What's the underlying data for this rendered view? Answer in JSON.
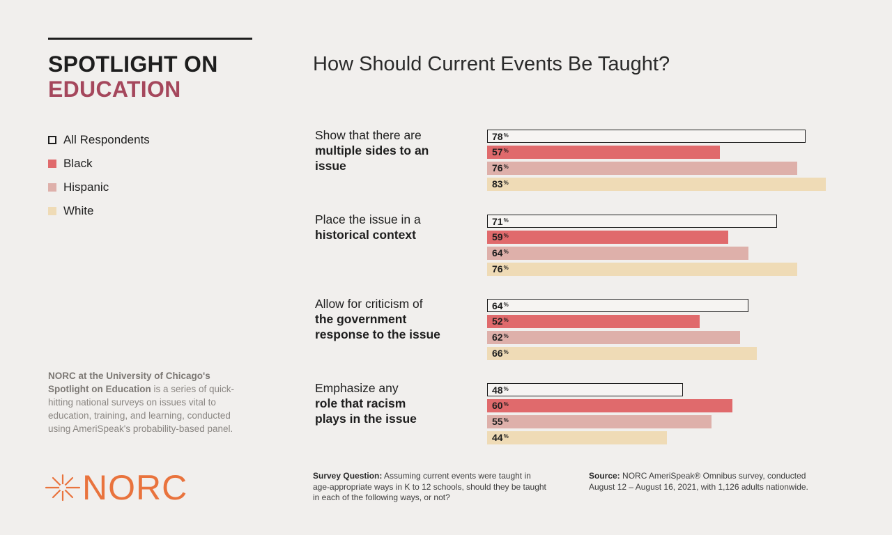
{
  "brand": {
    "line1": "SPOTLIGHT ON",
    "line2": "EDUCATION"
  },
  "legend": [
    {
      "label": "All Respondents",
      "color": "#f6f4f2",
      "outlined": true
    },
    {
      "label": "Black",
      "color": "#e06a6c",
      "outlined": false
    },
    {
      "label": "Hispanic",
      "color": "#deb0aa",
      "outlined": false
    },
    {
      "label": "White",
      "color": "#efdbb6",
      "outlined": false
    }
  ],
  "about": {
    "bold": "NORC at the University of Chicago's Spotlight on Education",
    "rest": " is a series of quick-hitting national surveys on issues vital to education, training, and learning, conducted using AmeriSpeak's probability-based panel."
  },
  "logo": {
    "text": "NORC"
  },
  "footnotes": {
    "question_label": "Survey Question:",
    "question_text": " Assuming current events were taught in age-appropriate ways in K to 12 schools, should they be taught in each of the following ways, or not?",
    "source_label": "Source:",
    "source_text": " NORC AmeriSpeak® Omnibus survey, conducted August 12 – August 16, 2021, with 1,126 adults nationwide."
  },
  "chart_data": {
    "type": "bar",
    "orientation": "horizontal",
    "title": "How Should Current Events Be Taught?",
    "unit": "%",
    "categories": [
      {
        "plain": "Show that there are",
        "bold": "multiple sides to an issue"
      },
      {
        "plain": "Place the issue in a",
        "bold": "historical context"
      },
      {
        "plain": "Allow for criticism of",
        "bold": "the government response to the issue"
      },
      {
        "plain": "Emphasize any",
        "bold": "role that racism plays in the issue"
      }
    ],
    "series": [
      {
        "name": "All Respondents",
        "color": "#f6f4f2",
        "outlined": true,
        "values": [
          78,
          71,
          64,
          48
        ]
      },
      {
        "name": "Black",
        "color": "#e06a6c",
        "outlined": false,
        "values": [
          57,
          59,
          52,
          60
        ]
      },
      {
        "name": "Hispanic",
        "color": "#deb0aa",
        "outlined": false,
        "values": [
          76,
          64,
          62,
          55
        ]
      },
      {
        "name": "White",
        "color": "#efdbb6",
        "outlined": false,
        "values": [
          83,
          76,
          66,
          44
        ]
      }
    ],
    "xlim": [
      0,
      100
    ]
  }
}
